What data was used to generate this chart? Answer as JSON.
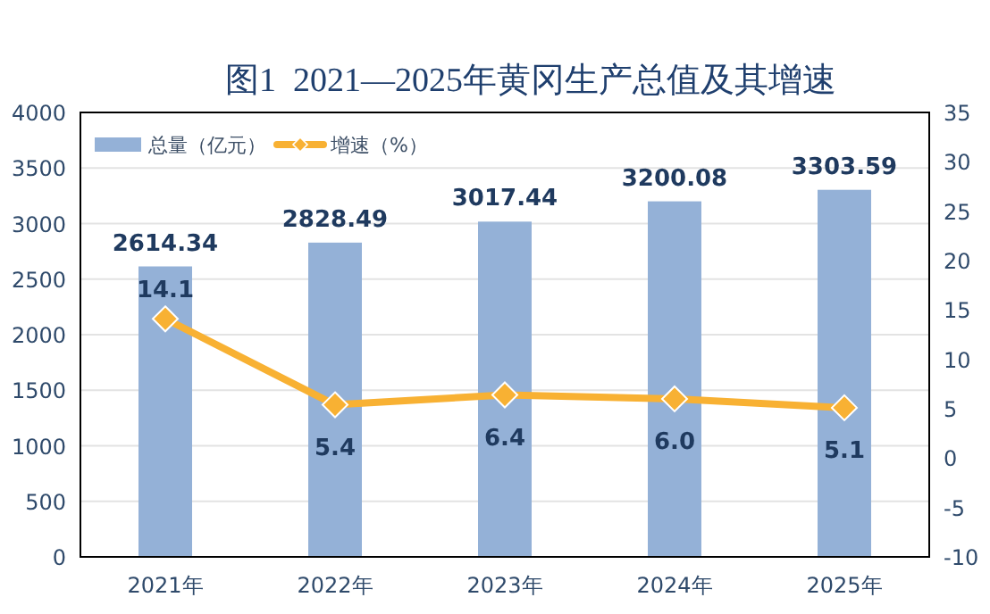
{
  "chart_data": {
    "type": "bar",
    "title": "图1  2021—2025年黄冈生产总值及其增速",
    "categories": [
      "2021年",
      "2022年",
      "2023年",
      "2024年",
      "2025年"
    ],
    "series": [
      {
        "name": "总量（亿元）",
        "color": "#94b1d7",
        "values": [
          2614.34,
          2828.49,
          3017.44,
          3200.08,
          3303.59
        ]
      },
      {
        "name": "增速（%）",
        "type": "line",
        "axis": "y2",
        "color": "#f8b133",
        "marker": "diamond",
        "values": [
          14.1,
          5.4,
          6.4,
          6.0,
          5.1
        ],
        "value_labels": [
          "14.1",
          "5.4",
          "6.4",
          "6.0",
          "5.1"
        ]
      }
    ],
    "ylim": [
      0,
      4000
    ],
    "yticks": [
      0,
      500,
      1000,
      1500,
      2000,
      2500,
      3000,
      3500,
      4000
    ],
    "y2lim": [
      -10,
      35
    ],
    "y2ticks": [
      -10,
      -5,
      0,
      5,
      10,
      15,
      20,
      25,
      30,
      35
    ],
    "grid": "y",
    "legend": "top left",
    "data_labels": true
  }
}
